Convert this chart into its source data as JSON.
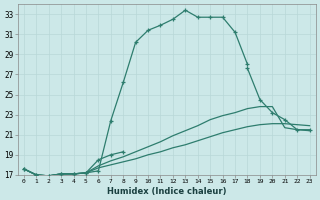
{
  "xlabel": "Humidex (Indice chaleur)",
  "xlim": [
    -0.5,
    23.5
  ],
  "ylim": [
    17,
    34
  ],
  "xticks": [
    0,
    1,
    2,
    3,
    4,
    5,
    6,
    7,
    8,
    9,
    10,
    11,
    12,
    13,
    14,
    15,
    16,
    17,
    18,
    19,
    20,
    21,
    22,
    23
  ],
  "yticks": [
    17,
    19,
    21,
    23,
    25,
    27,
    29,
    31,
    33
  ],
  "bg_color": "#cce8e8",
  "line_color": "#2e7d6e",
  "grid_color": "#b8d8d8",
  "series1_x": [
    0,
    1,
    2,
    3,
    4,
    5,
    6,
    7,
    8,
    9,
    10,
    11,
    12,
    13,
    14,
    15,
    16,
    17,
    18
  ],
  "series1_y": [
    17.6,
    17.0,
    16.9,
    17.1,
    17.1,
    17.2,
    17.4,
    22.4,
    26.2,
    30.2,
    31.4,
    31.9,
    32.5,
    33.4,
    32.7,
    32.7,
    32.7,
    31.2,
    28.0
  ],
  "series2_xa": [
    0,
    1,
    2,
    3,
    4,
    5,
    6,
    7,
    8
  ],
  "series2_ya": [
    17.6,
    17.0,
    16.9,
    17.1,
    17.1,
    17.2,
    18.5,
    19.0,
    19.3
  ],
  "series2_xb": [
    18,
    19,
    20,
    21,
    22,
    23
  ],
  "series2_yb": [
    27.6,
    24.5,
    23.2,
    22.5,
    21.5,
    21.5
  ],
  "series3_x": [
    0,
    1,
    2,
    3,
    4,
    5,
    6,
    7,
    8,
    9,
    10,
    11,
    12,
    13,
    14,
    15,
    16,
    17,
    18,
    19,
    20,
    21,
    22,
    23
  ],
  "series3_y": [
    17.6,
    17.0,
    16.9,
    17.1,
    17.1,
    17.2,
    17.9,
    18.4,
    18.8,
    19.3,
    19.8,
    20.3,
    20.9,
    21.4,
    21.9,
    22.5,
    22.9,
    23.2,
    23.6,
    23.8,
    23.8,
    21.7,
    21.5,
    21.4
  ],
  "series4_x": [
    0,
    1,
    2,
    3,
    4,
    5,
    6,
    7,
    8,
    9,
    10,
    11,
    12,
    13,
    14,
    15,
    16,
    17,
    18,
    19,
    20,
    21,
    22,
    23
  ],
  "series4_y": [
    17.6,
    17.0,
    16.9,
    17.1,
    17.1,
    17.2,
    17.7,
    18.0,
    18.3,
    18.6,
    19.0,
    19.3,
    19.7,
    20.0,
    20.4,
    20.8,
    21.2,
    21.5,
    21.8,
    22.0,
    22.1,
    22.1,
    22.0,
    21.9
  ]
}
